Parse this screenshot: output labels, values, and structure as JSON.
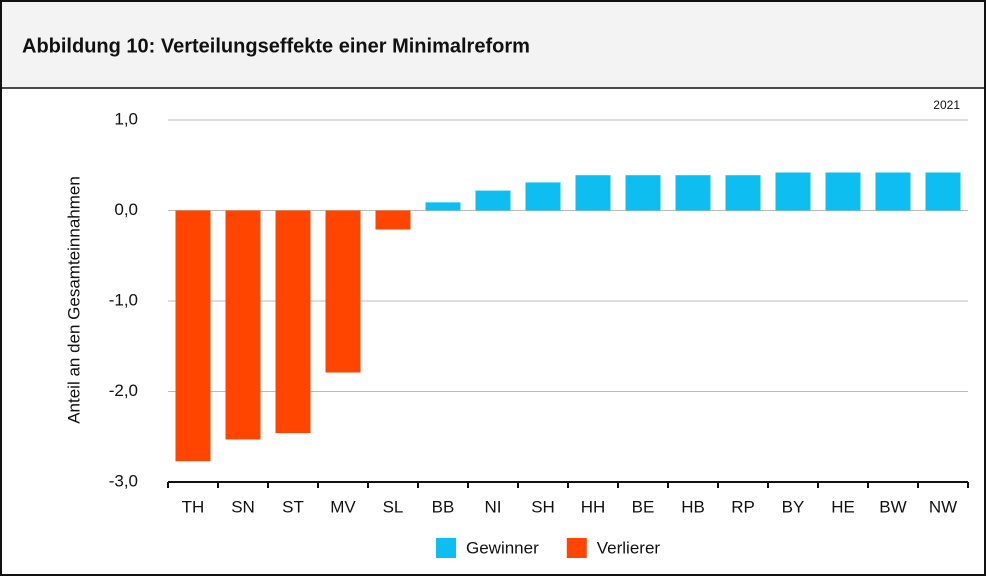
{
  "chart_data": {
    "type": "bar",
    "title": "Abbildung 10: Verteilungseffekte einer Minimalreform",
    "annotation": "2021",
    "y_label": "Anteil an den Gesamteinnahmen",
    "categories": [
      "TH",
      "SN",
      "ST",
      "MV",
      "SL",
      "BB",
      "NI",
      "SH",
      "HH",
      "BE",
      "HB",
      "RP",
      "BY",
      "HE",
      "BW",
      "NW"
    ],
    "series": [
      {
        "name": "Gewinner",
        "color": "#0fbef0",
        "values": [
          null,
          null,
          null,
          null,
          null,
          0.09,
          0.22,
          0.31,
          0.39,
          0.39,
          0.39,
          0.39,
          0.42,
          0.42,
          0.42,
          0.42
        ]
      },
      {
        "name": "Verlierer",
        "color": "#ff4500",
        "values": [
          -2.77,
          -2.53,
          -2.46,
          -1.79,
          -0.21,
          null,
          null,
          null,
          null,
          null,
          null,
          null,
          null,
          null,
          null,
          null
        ]
      }
    ],
    "ylim": [
      -3,
      1
    ],
    "yticks": [
      {
        "value": -3,
        "label": "-3,0"
      },
      {
        "value": -2,
        "label": "-2,0"
      },
      {
        "value": -1,
        "label": "-1,0"
      },
      {
        "value": 0,
        "label": "0,0"
      },
      {
        "value": 1,
        "label": "1,0"
      }
    ],
    "grid": true
  }
}
